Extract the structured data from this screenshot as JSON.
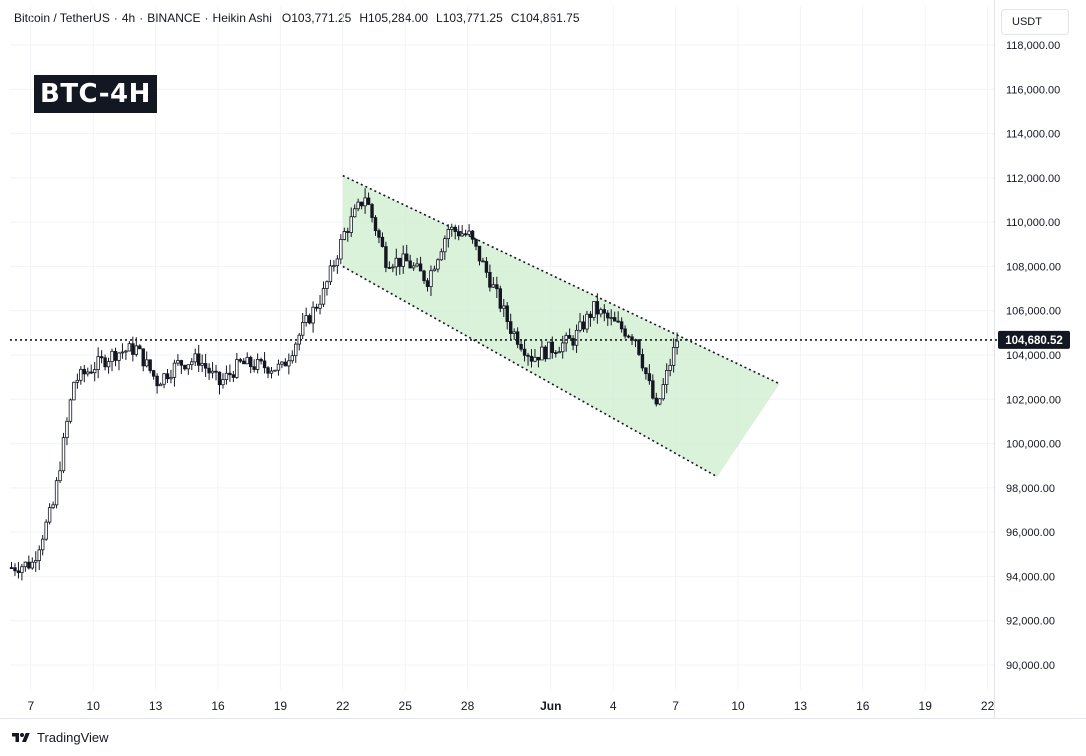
{
  "header": {
    "symbol": "Bitcoin / TetherUS",
    "interval": "4h",
    "exchange": "BINANCE",
    "chart_style": "Heikin Ashi",
    "ohlc": {
      "open": "O103,771.25",
      "high": "H105,284.00",
      "low": "L103,771.25",
      "close": "C104,861.75"
    }
  },
  "currency_button": "USDT",
  "badge": "BTC-4H",
  "footer": {
    "brand": "TradingView"
  },
  "price_label": "104,680.52",
  "colors": {
    "channel_fill": "#d4eed4",
    "channel_line": "#131722",
    "candle": "#131722",
    "price_line": "#131722"
  },
  "chart_data": {
    "type": "candlestick",
    "style": "Heikin Ashi",
    "y_axis": {
      "min": 89000,
      "max": 118500,
      "ticks": [
        {
          "value": 90000,
          "label": "90,000.00"
        },
        {
          "value": 92000,
          "label": "92,000.00"
        },
        {
          "value": 94000,
          "label": "94,000.00"
        },
        {
          "value": 96000,
          "label": "96,000.00"
        },
        {
          "value": 98000,
          "label": "98,000.00"
        },
        {
          "value": 100000,
          "label": "100,000.00"
        },
        {
          "value": 102000,
          "label": "102,000.00"
        },
        {
          "value": 104000,
          "label": "104,000.00"
        },
        {
          "value": 106000,
          "label": "106,000.00"
        },
        {
          "value": 108000,
          "label": "108,000.00"
        },
        {
          "value": 110000,
          "label": "110,000.00"
        },
        {
          "value": 112000,
          "label": "112,000.00"
        },
        {
          "value": 114000,
          "label": "114,000.00"
        },
        {
          "value": 116000,
          "label": "116,000.00"
        },
        {
          "value": 118000,
          "label": "118,000.00"
        }
      ]
    },
    "x_axis": {
      "start": "2025-05-06",
      "end": "2025-06-23",
      "ticks": [
        {
          "date": "2025-05-07",
          "label": "7"
        },
        {
          "date": "2025-05-10",
          "label": "10"
        },
        {
          "date": "2025-05-13",
          "label": "13"
        },
        {
          "date": "2025-05-16",
          "label": "16"
        },
        {
          "date": "2025-05-19",
          "label": "19"
        },
        {
          "date": "2025-05-22",
          "label": "22"
        },
        {
          "date": "2025-05-25",
          "label": "25"
        },
        {
          "date": "2025-05-28",
          "label": "28"
        },
        {
          "date": "2025-06-01",
          "label": "Jun"
        },
        {
          "date": "2025-06-04",
          "label": "4"
        },
        {
          "date": "2025-06-07",
          "label": "7"
        },
        {
          "date": "2025-06-10",
          "label": "10"
        },
        {
          "date": "2025-06-13",
          "label": "13"
        },
        {
          "date": "2025-06-16",
          "label": "16"
        },
        {
          "date": "2025-06-19",
          "label": "19"
        },
        {
          "date": "2025-06-22",
          "label": "22"
        }
      ]
    },
    "current_price": 104680.52,
    "grid": true,
    "price_path": [
      {
        "date": "2025-05-06",
        "price": 94400
      },
      {
        "date": "2025-05-07",
        "price": 94600
      },
      {
        "date": "2025-05-08",
        "price": 97200
      },
      {
        "date": "2025-05-09",
        "price": 102800
      },
      {
        "date": "2025-05-10",
        "price": 103500
      },
      {
        "date": "2025-05-11",
        "price": 104100
      },
      {
        "date": "2025-05-12",
        "price": 104300
      },
      {
        "date": "2025-05-13",
        "price": 102800
      },
      {
        "date": "2025-05-14",
        "price": 103600
      },
      {
        "date": "2025-05-15",
        "price": 103800
      },
      {
        "date": "2025-05-16",
        "price": 102700
      },
      {
        "date": "2025-05-17",
        "price": 103600
      },
      {
        "date": "2025-05-18",
        "price": 103500
      },
      {
        "date": "2025-05-19",
        "price": 103400
      },
      {
        "date": "2025-05-20",
        "price": 105200
      },
      {
        "date": "2025-05-21",
        "price": 106800
      },
      {
        "date": "2025-05-22",
        "price": 109500
      },
      {
        "date": "2025-05-23",
        "price": 111200
      },
      {
        "date": "2025-05-24",
        "price": 108300
      },
      {
        "date": "2025-05-25",
        "price": 108200
      },
      {
        "date": "2025-05-26",
        "price": 107400
      },
      {
        "date": "2025-05-27",
        "price": 109700
      },
      {
        "date": "2025-05-28",
        "price": 109400
      },
      {
        "date": "2025-05-29",
        "price": 107400
      },
      {
        "date": "2025-05-30",
        "price": 105200
      },
      {
        "date": "2025-05-31",
        "price": 103900
      },
      {
        "date": "2025-06-01",
        "price": 104300
      },
      {
        "date": "2025-06-02",
        "price": 104700
      },
      {
        "date": "2025-06-03",
        "price": 106100
      },
      {
        "date": "2025-06-04",
        "price": 105400
      },
      {
        "date": "2025-06-05",
        "price": 104800
      },
      {
        "date": "2025-06-06",
        "price": 101500
      },
      {
        "date": "2025-06-07",
        "price": 104700
      }
    ],
    "channel": {
      "upper": [
        {
          "date": "2025-05-22",
          "price": 112100
        },
        {
          "date": "2025-06-12",
          "price": 102700
        }
      ],
      "lower": [
        {
          "date": "2025-05-22",
          "price": 108000
        },
        {
          "date": "2025-06-09",
          "price": 98500
        }
      ]
    }
  }
}
